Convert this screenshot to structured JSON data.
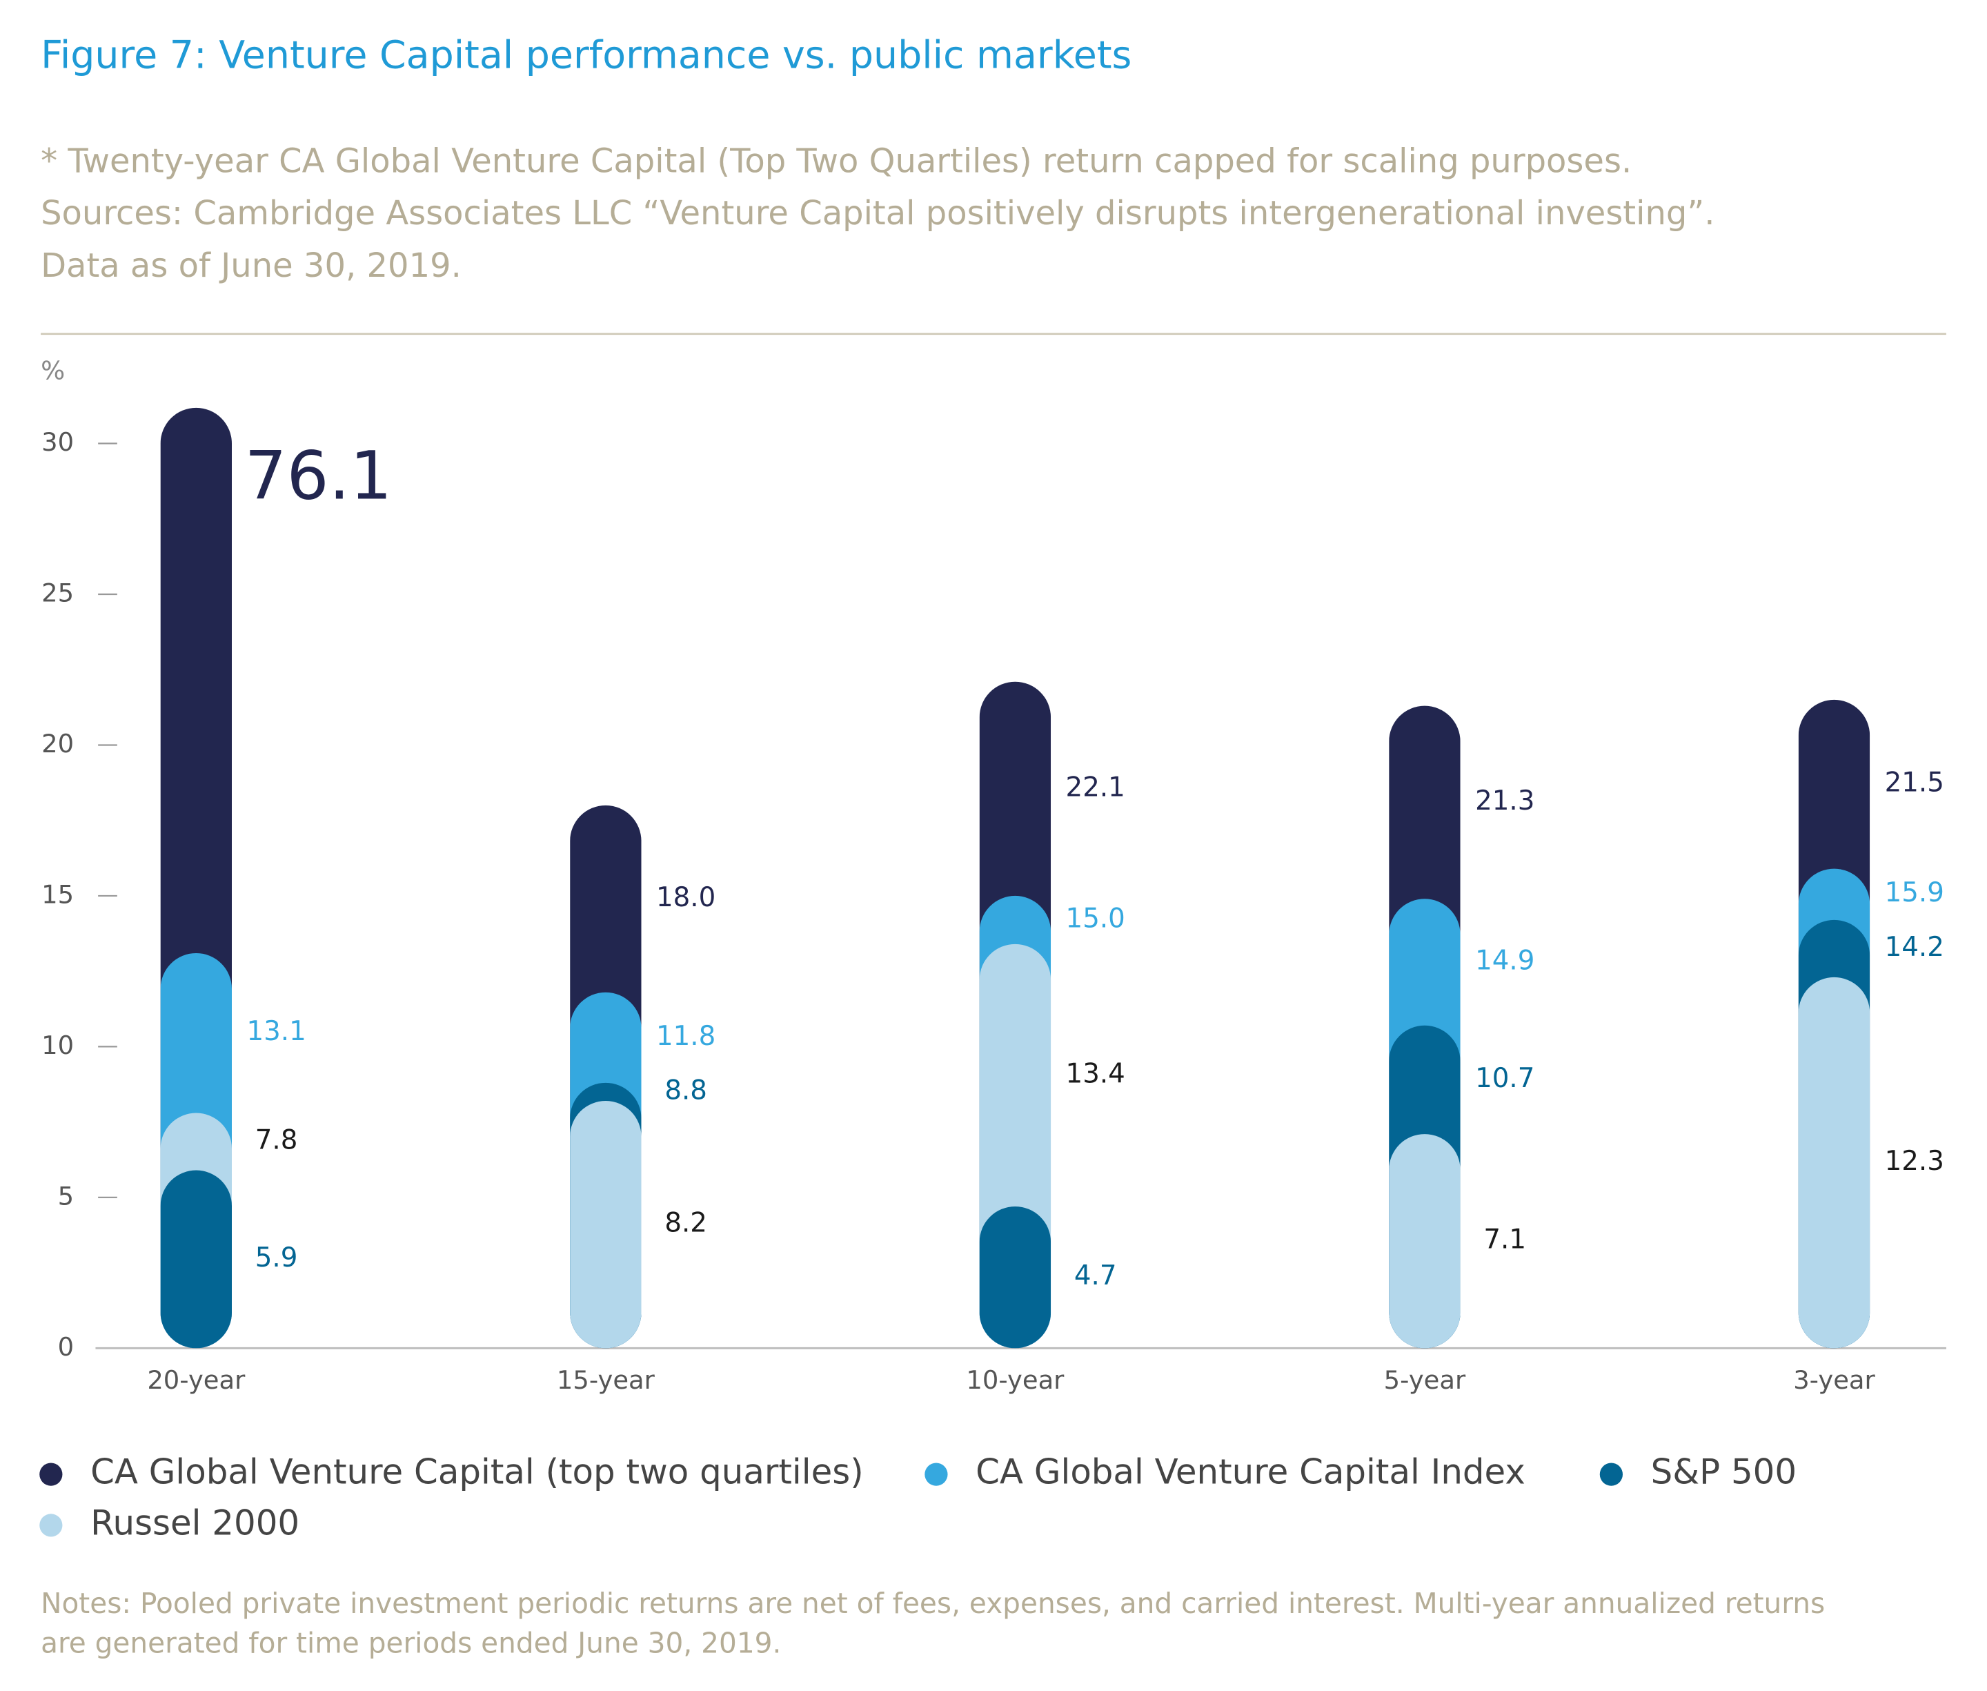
{
  "chart_data": {
    "type": "bar",
    "title": "Figure 7: Venture Capital performance vs. public markets",
    "subtitle": [
      "* Twenty-year CA Global Venture Capital (Top Two Quartiles) return capped for scaling purposes.",
      "Sources: Cambridge Associates LLC “Venture Capital positively disrupts intergenerational investing”.",
      "Data as of June 30, 2019."
    ],
    "y_axis_label": "%",
    "categories": [
      "20-year",
      "15-year",
      "10-year",
      "5-year",
      "3-year"
    ],
    "series": [
      {
        "name": "CA Global Venture Capital (top two quartiles)",
        "color": "#22264f",
        "label_color": "#22264f",
        "values": [
          76.1,
          18.0,
          22.1,
          21.3,
          21.5
        ],
        "value_labels": [
          "76.1",
          "18.0",
          "22.1",
          "21.3",
          "21.5"
        ]
      },
      {
        "name": "CA Global Venture Capital Index",
        "color": "#35a8df",
        "label_color": "#35a8df",
        "values": [
          13.1,
          11.8,
          15.0,
          14.9,
          15.9
        ],
        "value_labels": [
          "13.1",
          "11.8",
          "15.0",
          "14.9",
          "15.9"
        ]
      },
      {
        "name": "S&P 500",
        "color": "#036593",
        "label_color": "#036593",
        "values": [
          5.9,
          8.8,
          4.7,
          10.7,
          14.2
        ],
        "value_labels": [
          "5.9",
          "8.8",
          "4.7",
          "10.7",
          "14.2"
        ]
      },
      {
        "name": "Russel 2000",
        "color": "#b3d7eb",
        "label_color": "#1a1a1a",
        "values": [
          7.8,
          8.2,
          13.4,
          7.1,
          12.3
        ],
        "value_labels": [
          "7.8",
          "8.2",
          "13.4",
          "7.1",
          "12.3"
        ]
      }
    ],
    "ylim": [
      0,
      30
    ],
    "yticks": [
      0,
      5,
      10,
      15,
      20,
      25,
      30
    ],
    "notes": [
      "Notes: Pooled private investment periodic returns are net of fees, expenses, and carried interest. Multi-year annualized returns",
      "are generated for time periods ended June 30, 2019."
    ]
  }
}
